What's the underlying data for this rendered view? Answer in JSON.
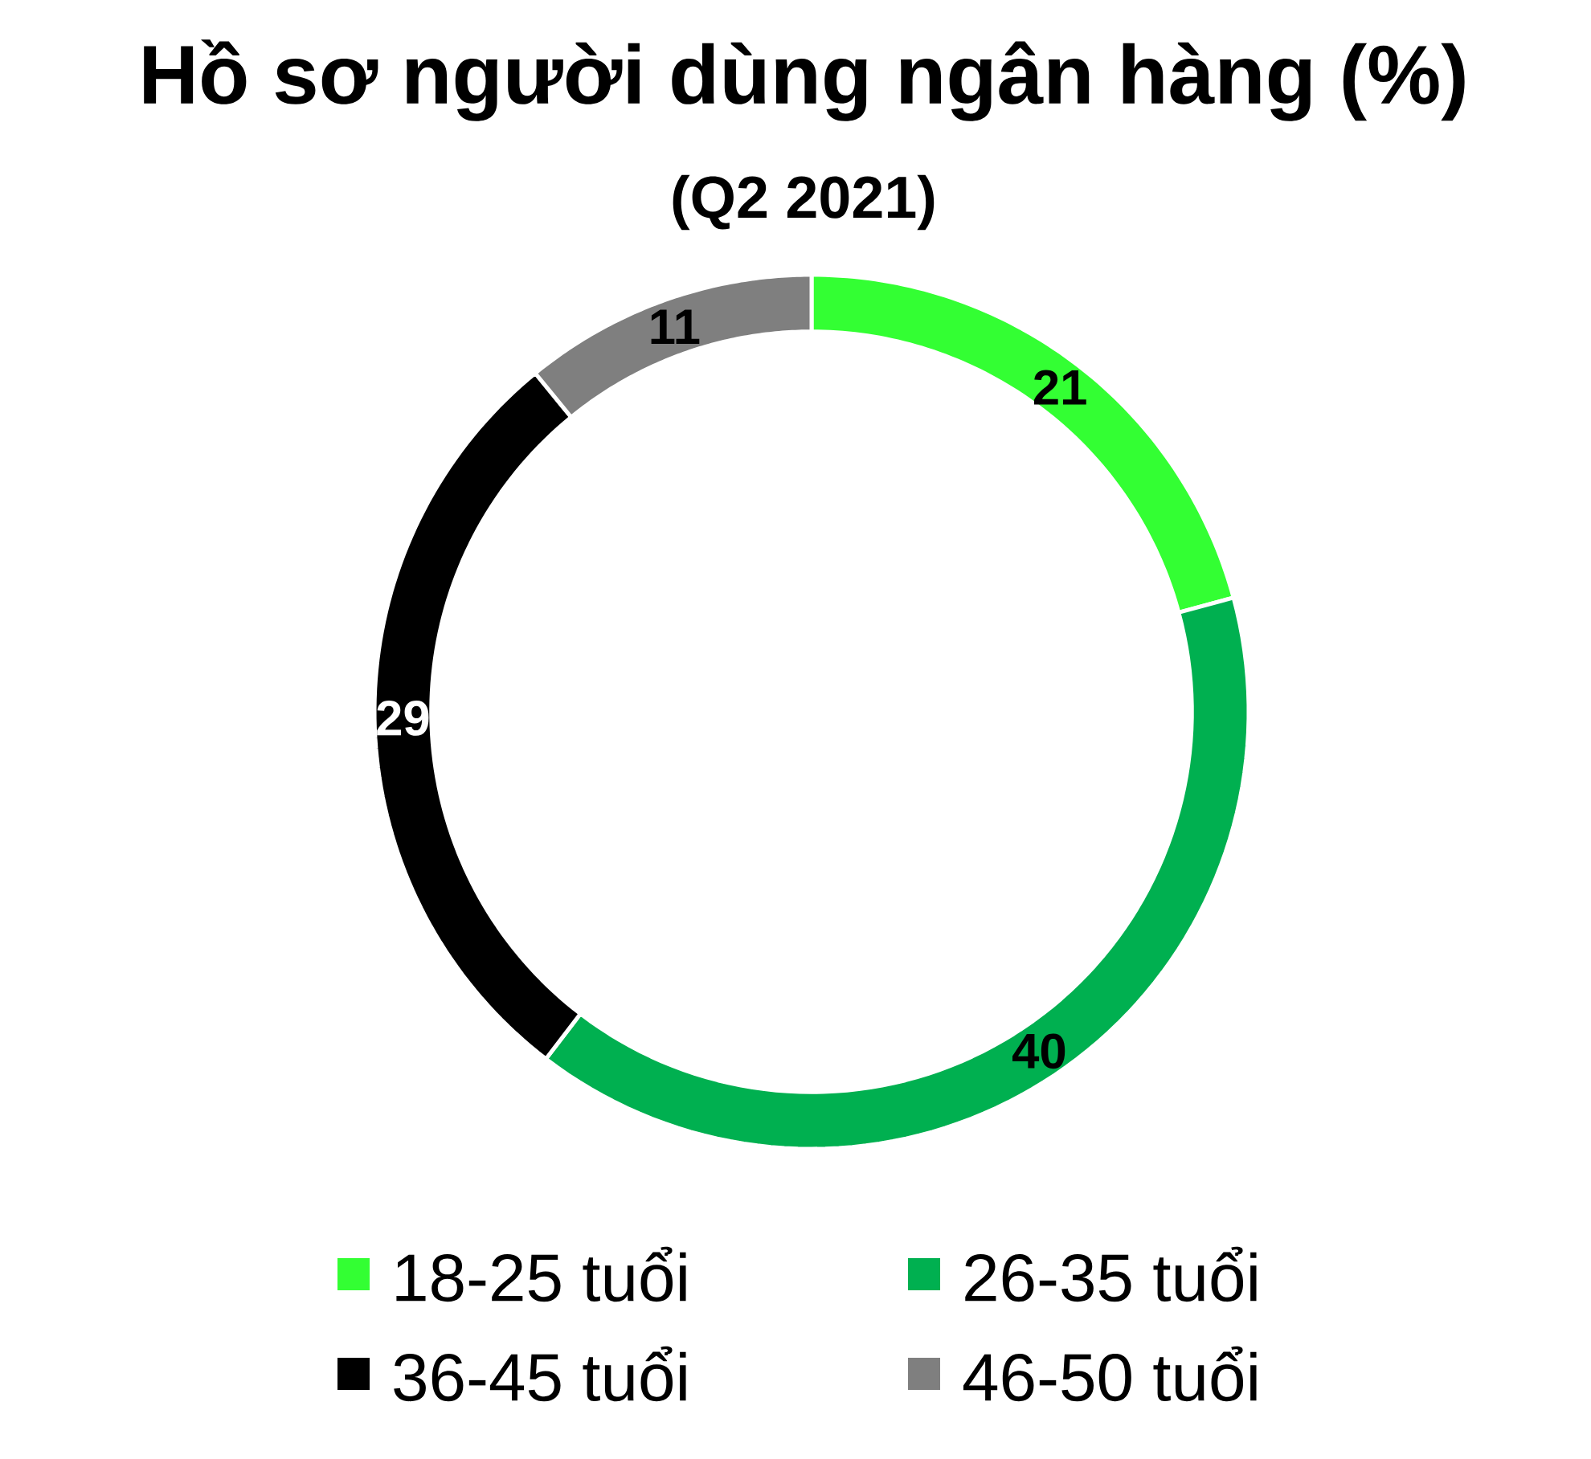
{
  "chart_data": {
    "type": "donut",
    "title": "Hồ sơ người dùng ngân hàng (%)",
    "subtitle": "(Q2 2021)",
    "categories": [
      "18-25 tuổi",
      "26-35 tuổi",
      "36-45 tuổi",
      "46-50 tuổi"
    ],
    "values": [
      21,
      40,
      29,
      11
    ],
    "colors": [
      "#33FF33",
      "#00B050",
      "#000000",
      "#7F7F7F"
    ],
    "data_labels": true,
    "legend": "bottom"
  }
}
